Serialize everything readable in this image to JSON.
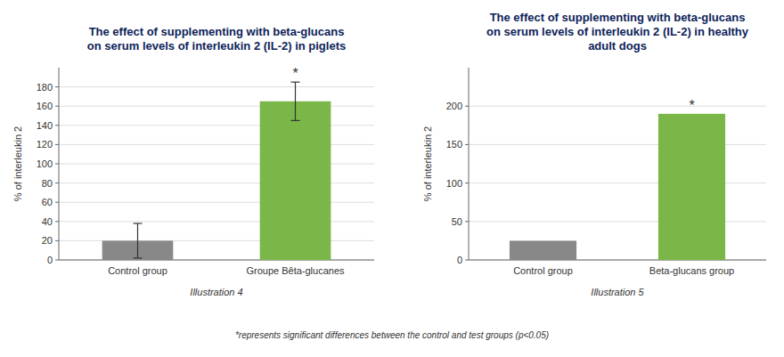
{
  "chart_data": [
    {
      "type": "bar",
      "title": "The effect of supplementing with beta-glucans\non serum levels of interleukin 2 (IL-2) in piglets",
      "categories": [
        "Control group",
        "Groupe Bêta-glucanes"
      ],
      "values": [
        20,
        165
      ],
      "errors": [
        18,
        20
      ],
      "colors": [
        "#888888",
        "#7ab648"
      ],
      "ylabel": "% of interleukin 2",
      "ylim": [
        0,
        200
      ],
      "yticks": [
        0,
        20,
        40,
        60,
        80,
        100,
        120,
        140,
        160,
        180
      ],
      "grid": true,
      "annotations": [
        {
          "text": "*",
          "index": 1
        }
      ],
      "caption": "Illustration 4"
    },
    {
      "type": "bar",
      "title": "The effect of supplementing with beta-glucans\non serum levels of interleukin 2 (IL-2) in healthy\nadult dogs",
      "categories": [
        "Control group",
        "Beta-glucans group"
      ],
      "values": [
        25,
        190
      ],
      "colors": [
        "#888888",
        "#7ab648"
      ],
      "ylabel": "% of interleukin 2",
      "ylim": [
        0,
        250
      ],
      "yticks": [
        0,
        50,
        100,
        150,
        200
      ],
      "grid": true,
      "annotations": [
        {
          "text": "*",
          "index": 1
        }
      ],
      "caption": "Illustration 5"
    }
  ],
  "footnote": "*represents significant differences between the control and test groups (p<0.05)"
}
